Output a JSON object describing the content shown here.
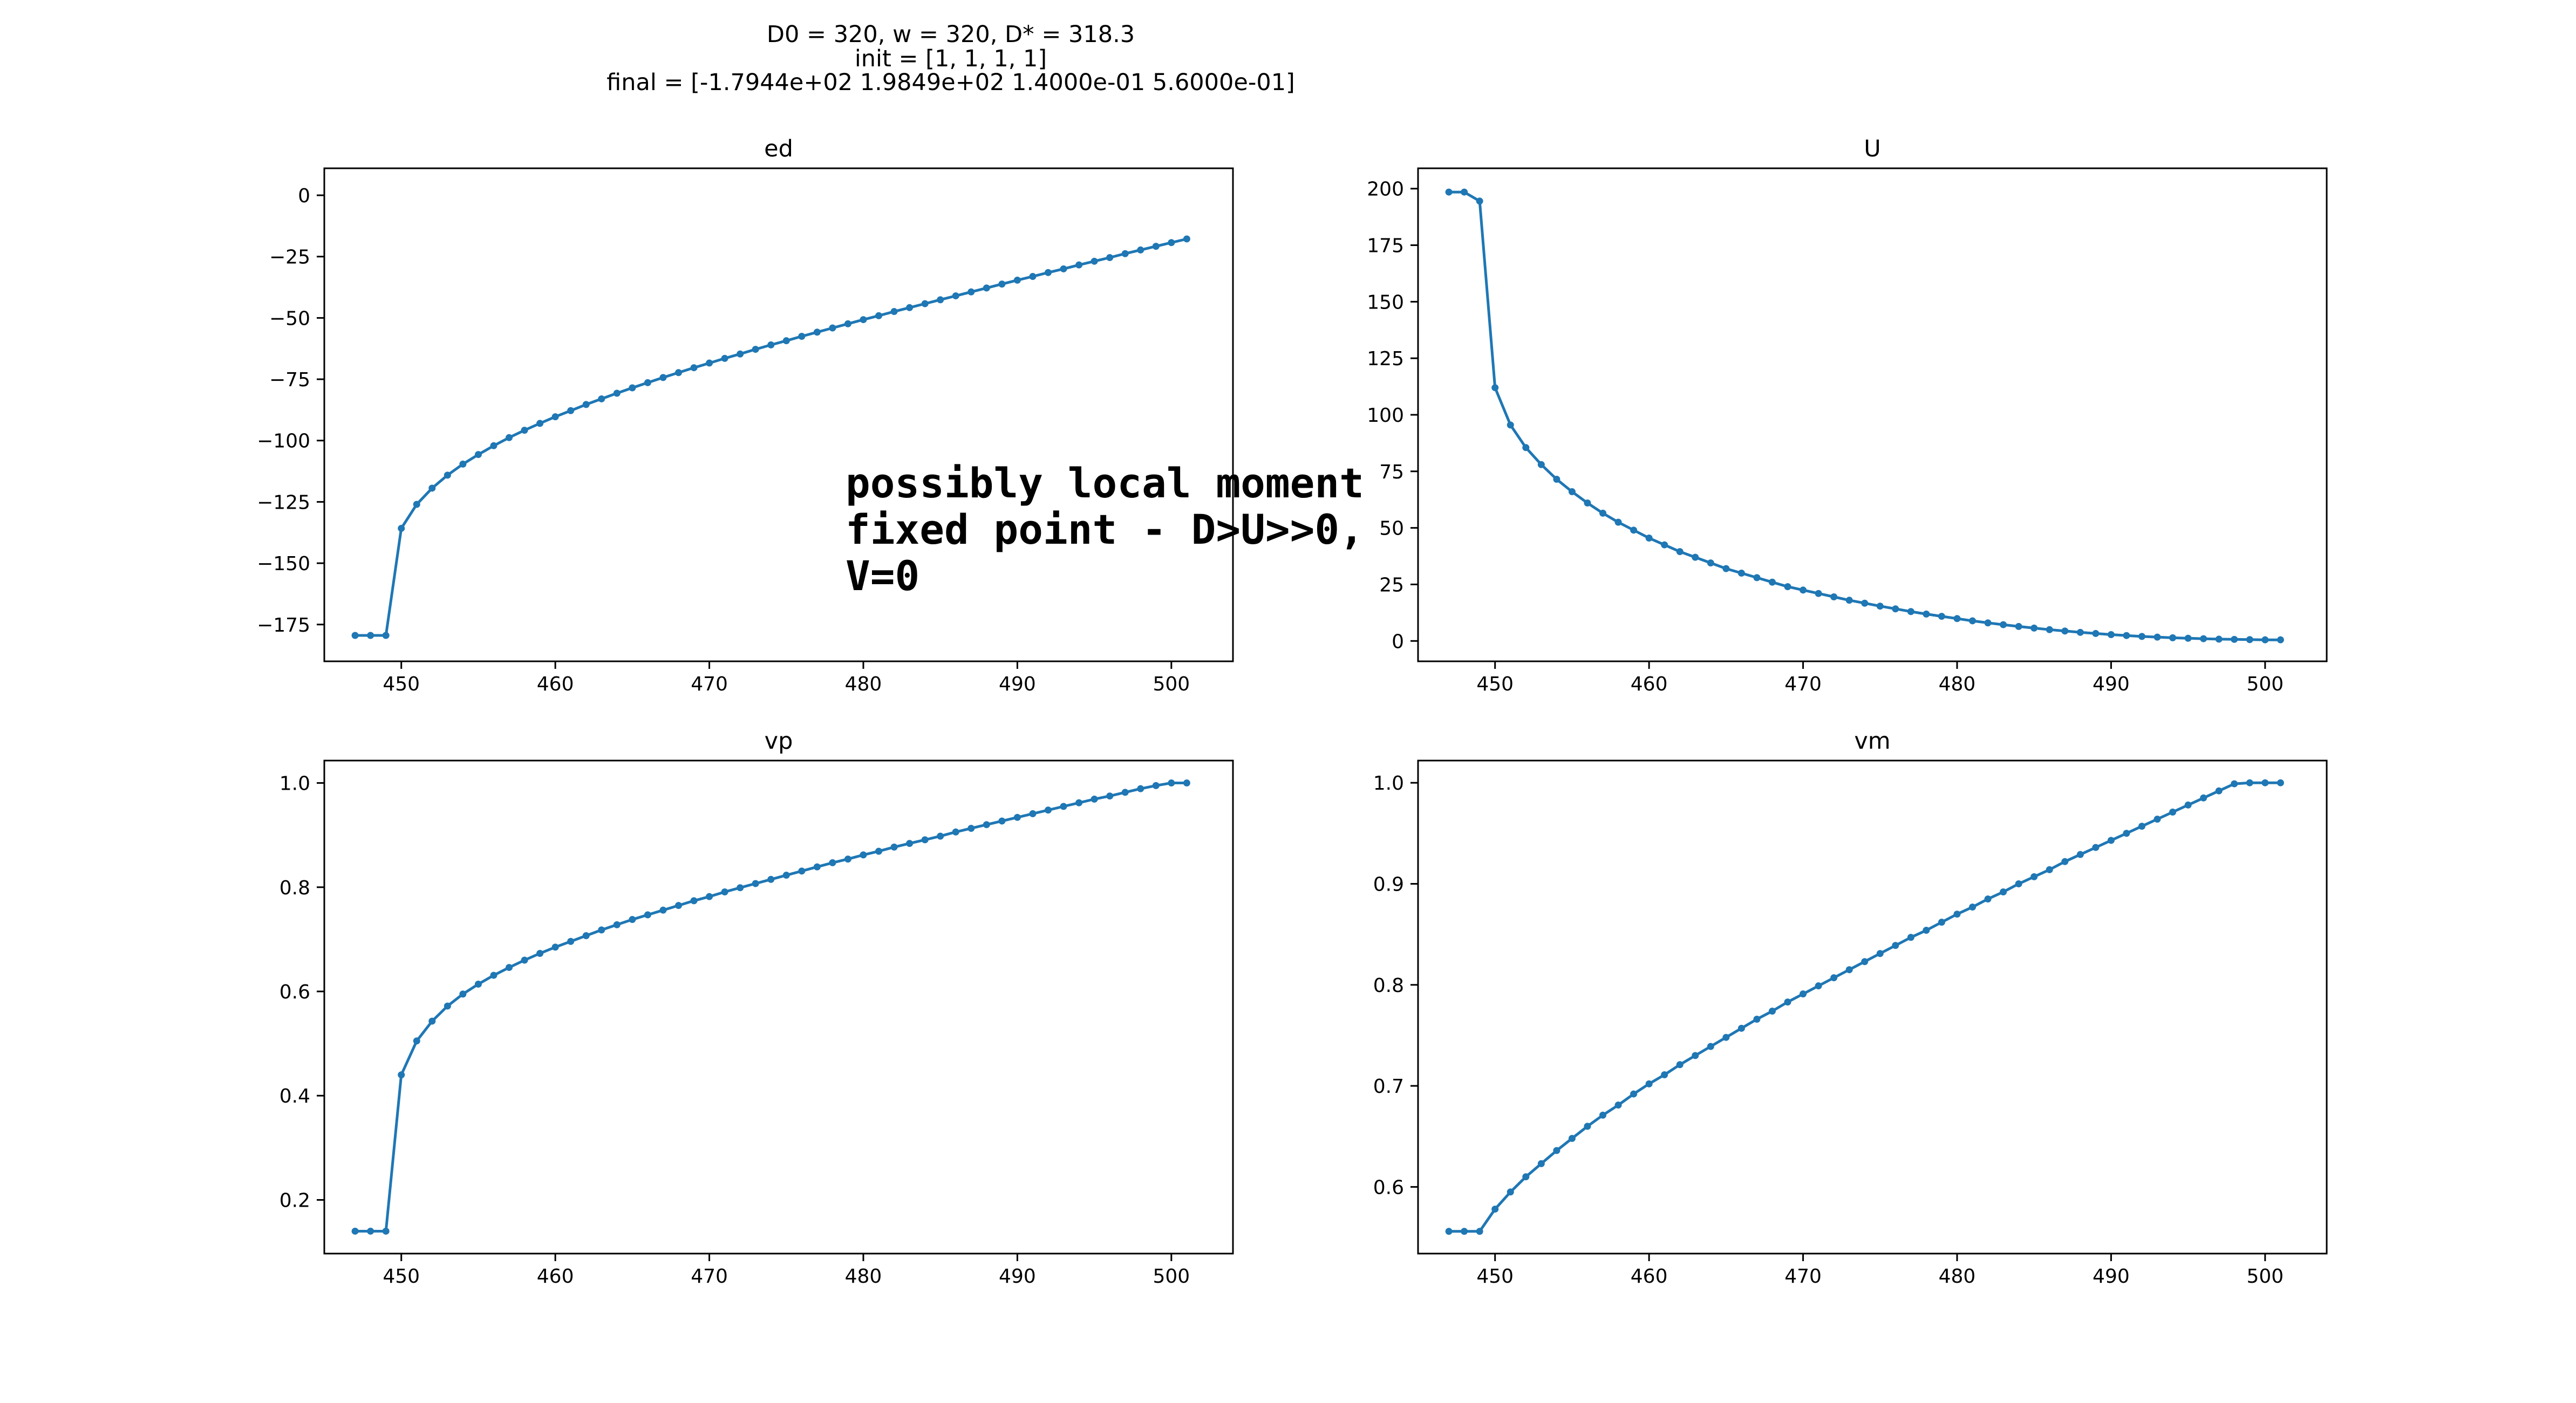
{
  "figure": {
    "suptitle": [
      "D0 = 320, w = 320, D* = 318.3",
      "init = [1, 1, 1, 1]",
      "final = [-1.7944e+02  1.9849e+02  1.4000e-01  5.6000e-01]"
    ],
    "annotation": [
      "possibly local moment",
      "fixed point - D>U>>0,",
      "V=0"
    ],
    "line_color": "#1f77b4"
  },
  "chart_data": [
    {
      "type": "line",
      "title": "ed",
      "xlim": [
        445,
        504
      ],
      "ylim": [
        -190,
        11
      ],
      "xticks": [
        450,
        460,
        470,
        480,
        490,
        500
      ],
      "xtick_labels": [
        "450",
        "460",
        "470",
        "480",
        "490",
        "500"
      ],
      "yticks": [
        0,
        -25,
        -50,
        -75,
        -100,
        -125,
        -150,
        -175
      ],
      "ytick_labels": [
        "0",
        "−25",
        "−50",
        "−75",
        "−100",
        "−125",
        "−150",
        "−175"
      ],
      "x": [
        447,
        448,
        449,
        450,
        451,
        452,
        453,
        454,
        455,
        456,
        457,
        458,
        459,
        460,
        461,
        462,
        463,
        464,
        465,
        466,
        467,
        468,
        469,
        470,
        471,
        472,
        473,
        474,
        475,
        476,
        477,
        478,
        479,
        480,
        481,
        482,
        483,
        484,
        485,
        486,
        487,
        488,
        489,
        490,
        491,
        492,
        493,
        494,
        495,
        496,
        497,
        498,
        499,
        500,
        501
      ],
      "y": [
        -179.44,
        -179.44,
        -179.44,
        -135.8,
        -126.0,
        -119.4,
        -114.1,
        -109.6,
        -105.7,
        -102.1,
        -98.8,
        -95.8,
        -93.0,
        -90.3,
        -87.8,
        -85.3,
        -83.0,
        -80.7,
        -78.5,
        -76.4,
        -74.3,
        -72.3,
        -70.3,
        -68.4,
        -66.5,
        -64.7,
        -62.8,
        -61.0,
        -59.3,
        -57.5,
        -55.8,
        -54.1,
        -52.4,
        -50.7,
        -49.1,
        -47.4,
        -45.8,
        -44.2,
        -42.6,
        -41.0,
        -39.4,
        -37.8,
        -36.2,
        -34.6,
        -33.1,
        -31.5,
        -30.0,
        -28.4,
        -26.9,
        -25.4,
        -23.8,
        -22.3,
        -20.8,
        -19.3,
        -17.8
      ]
    },
    {
      "type": "line",
      "title": "U",
      "xlim": [
        445,
        504
      ],
      "ylim": [
        -9,
        209
      ],
      "xticks": [
        450,
        460,
        470,
        480,
        490,
        500
      ],
      "xtick_labels": [
        "450",
        "460",
        "470",
        "480",
        "490",
        "500"
      ],
      "yticks": [
        0,
        25,
        50,
        75,
        100,
        125,
        150,
        175,
        200
      ],
      "ytick_labels": [
        "0",
        "25",
        "50",
        "75",
        "100",
        "125",
        "150",
        "175",
        "200"
      ],
      "x": [
        447,
        448,
        449,
        450,
        451,
        452,
        453,
        454,
        455,
        456,
        457,
        458,
        459,
        460,
        461,
        462,
        463,
        464,
        465,
        466,
        467,
        468,
        469,
        470,
        471,
        472,
        473,
        474,
        475,
        476,
        477,
        478,
        479,
        480,
        481,
        482,
        483,
        484,
        485,
        486,
        487,
        488,
        489,
        490,
        491,
        492,
        493,
        494,
        495,
        496,
        497,
        498,
        499,
        500,
        501
      ],
      "y": [
        198.49,
        198.49,
        194.5,
        112.0,
        95.5,
        85.5,
        78.0,
        71.5,
        66.0,
        61.0,
        56.5,
        52.5,
        49.0,
        45.5,
        42.5,
        39.5,
        37.0,
        34.5,
        32.0,
        30.0,
        28.0,
        26.0,
        24.0,
        22.5,
        21.0,
        19.5,
        18.0,
        16.7,
        15.4,
        14.2,
        13.0,
        11.9,
        10.9,
        9.9,
        8.9,
        8.0,
        7.2,
        6.4,
        5.7,
        5.0,
        4.4,
        3.8,
        3.3,
        2.8,
        2.4,
        2.0,
        1.7,
        1.4,
        1.2,
        1.0,
        0.8,
        0.7,
        0.6,
        0.5,
        0.5
      ]
    },
    {
      "type": "line",
      "title": "vp",
      "xlim": [
        445,
        504
      ],
      "ylim": [
        0.097,
        1.043
      ],
      "xticks": [
        450,
        460,
        470,
        480,
        490,
        500
      ],
      "xtick_labels": [
        "450",
        "460",
        "470",
        "480",
        "490",
        "500"
      ],
      "yticks": [
        0.2,
        0.4,
        0.6,
        0.8,
        1.0
      ],
      "ytick_labels": [
        "0.2",
        "0.4",
        "0.6",
        "0.8",
        "1.0"
      ],
      "x": [
        447,
        448,
        449,
        450,
        451,
        452,
        453,
        454,
        455,
        456,
        457,
        458,
        459,
        460,
        461,
        462,
        463,
        464,
        465,
        466,
        467,
        468,
        469,
        470,
        471,
        472,
        473,
        474,
        475,
        476,
        477,
        478,
        479,
        480,
        481,
        482,
        483,
        484,
        485,
        486,
        487,
        488,
        489,
        490,
        491,
        492,
        493,
        494,
        495,
        496,
        497,
        498,
        499,
        500,
        501
      ],
      "y": [
        0.14,
        0.14,
        0.14,
        0.44,
        0.505,
        0.543,
        0.572,
        0.595,
        0.614,
        0.631,
        0.646,
        0.66,
        0.673,
        0.685,
        0.696,
        0.707,
        0.718,
        0.728,
        0.738,
        0.747,
        0.756,
        0.765,
        0.774,
        0.782,
        0.791,
        0.799,
        0.807,
        0.815,
        0.823,
        0.831,
        0.839,
        0.847,
        0.854,
        0.862,
        0.869,
        0.877,
        0.884,
        0.891,
        0.898,
        0.906,
        0.913,
        0.92,
        0.927,
        0.934,
        0.941,
        0.948,
        0.955,
        0.962,
        0.969,
        0.975,
        0.982,
        0.989,
        0.995,
        1.0,
        1.0
      ]
    },
    {
      "type": "line",
      "title": "vm",
      "xlim": [
        445,
        504
      ],
      "ylim": [
        0.534,
        1.022
      ],
      "xticks": [
        450,
        460,
        470,
        480,
        490,
        500
      ],
      "xtick_labels": [
        "450",
        "460",
        "470",
        "480",
        "490",
        "500"
      ],
      "yticks": [
        0.6,
        0.7,
        0.8,
        0.9,
        1.0
      ],
      "ytick_labels": [
        "0.6",
        "0.7",
        "0.8",
        "0.9",
        "1.0"
      ],
      "x": [
        447,
        448,
        449,
        450,
        451,
        452,
        453,
        454,
        455,
        456,
        457,
        458,
        459,
        460,
        461,
        462,
        463,
        464,
        465,
        466,
        467,
        468,
        469,
        470,
        471,
        472,
        473,
        474,
        475,
        476,
        477,
        478,
        479,
        480,
        481,
        482,
        483,
        484,
        485,
        486,
        487,
        488,
        489,
        490,
        491,
        492,
        493,
        494,
        495,
        496,
        497,
        498,
        499,
        500,
        501
      ],
      "y": [
        0.556,
        0.556,
        0.556,
        0.578,
        0.595,
        0.61,
        0.623,
        0.636,
        0.648,
        0.66,
        0.671,
        0.681,
        0.692,
        0.702,
        0.711,
        0.721,
        0.73,
        0.739,
        0.748,
        0.757,
        0.766,
        0.774,
        0.783,
        0.791,
        0.799,
        0.807,
        0.815,
        0.823,
        0.831,
        0.839,
        0.847,
        0.854,
        0.862,
        0.87,
        0.877,
        0.885,
        0.892,
        0.9,
        0.907,
        0.914,
        0.922,
        0.929,
        0.936,
        0.943,
        0.95,
        0.957,
        0.964,
        0.971,
        0.978,
        0.985,
        0.992,
        0.999,
        1.0,
        1.0,
        1.0
      ]
    }
  ]
}
